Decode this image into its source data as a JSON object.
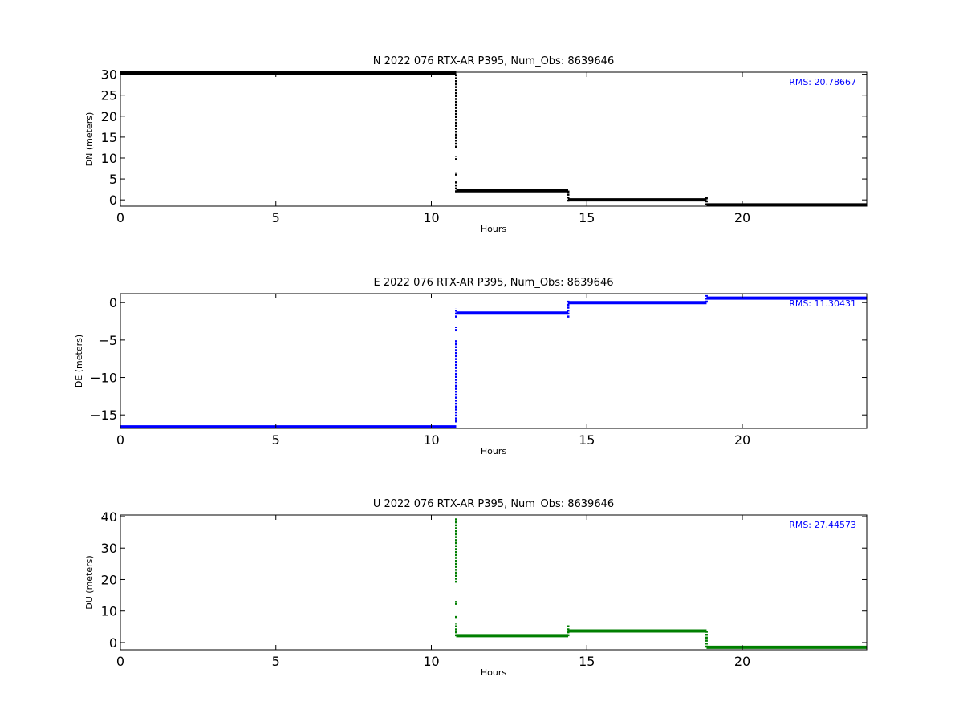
{
  "chart_data": [
    {
      "type": "scatter",
      "title": "N 2022 076 RTX-AR  P395, Num_Obs: 8639646",
      "xlabel": "Hours",
      "ylabel": "DN (meters)",
      "xlim": [
        0,
        24
      ],
      "ylim": [
        -1.5,
        30.5
      ],
      "xticks": [
        0,
        5,
        10,
        15,
        20
      ],
      "yticks": [
        0,
        5,
        10,
        15,
        20,
        25,
        30
      ],
      "grid": false,
      "color": "#000000",
      "annotation": "RMS: 20.78667",
      "annotation_color": "#0000ff",
      "segments": [
        {
          "x": [
            0,
            10.8
          ],
          "y": 30.3
        },
        {
          "x": [
            10.8,
            14.4
          ],
          "y": 2.2
        },
        {
          "x": [
            14.4,
            18.85
          ],
          "y": 0.0
        },
        {
          "x": [
            18.85,
            24
          ],
          "y": -1.2
        }
      ],
      "spikes": [
        {
          "x": 10.8,
          "y": [
            12.5,
            30.0
          ]
        },
        {
          "x": 10.8,
          "y": [
            9.5,
            10.3
          ]
        },
        {
          "x": 10.8,
          "y": [
            5.8,
            6.6
          ]
        },
        {
          "x": 10.8,
          "y": [
            1.8,
            4.5
          ]
        },
        {
          "x": 14.4,
          "y": [
            -0.4,
            2.4
          ]
        },
        {
          "x": 18.85,
          "y": [
            -1.3,
            0.6
          ]
        }
      ]
    },
    {
      "type": "scatter",
      "title": "E 2022 076 RTX-AR  P395, Num_Obs: 8639646",
      "xlabel": "Hours",
      "ylabel": "DE (meters)",
      "xlim": [
        0,
        24
      ],
      "ylim": [
        -16.8,
        1.2
      ],
      "xticks": [
        0,
        5,
        10,
        15,
        20
      ],
      "yticks": [
        -15,
        -10,
        -5,
        0
      ],
      "grid": false,
      "color": "#0000ff",
      "annotation": "RMS: 11.30431",
      "annotation_color": "#0000ff",
      "segments": [
        {
          "x": [
            0,
            10.8
          ],
          "y": -16.6
        },
        {
          "x": [
            10.8,
            14.4
          ],
          "y": -1.4
        },
        {
          "x": [
            14.4,
            18.85
          ],
          "y": 0.0
        },
        {
          "x": [
            18.85,
            24
          ],
          "y": 0.6
        }
      ],
      "spikes": [
        {
          "x": 10.8,
          "y": [
            -16.0,
            -5.0
          ]
        },
        {
          "x": 10.8,
          "y": [
            -3.8,
            -3.3
          ]
        },
        {
          "x": 10.8,
          "y": [
            -2.0,
            -0.8
          ]
        },
        {
          "x": 14.4,
          "y": [
            -2.0,
            0.3
          ]
        },
        {
          "x": 18.85,
          "y": [
            0.0,
            1.0
          ]
        }
      ]
    },
    {
      "type": "scatter",
      "title": "U 2022 076 RTX-AR  P395, Num_Obs: 8639646",
      "xlabel": "Hours",
      "ylabel": "DU (meters)",
      "xlim": [
        0,
        24
      ],
      "ylim": [
        -2.3,
        40.5
      ],
      "xticks": [
        0,
        5,
        10,
        15,
        20
      ],
      "yticks": [
        0,
        10,
        20,
        30,
        40
      ],
      "grid": false,
      "color": "#007f00",
      "annotation": "RMS: 27.44573",
      "annotation_color": "#0000ff",
      "segments": [
        {
          "x": [
            10.8,
            14.4
          ],
          "y": 2.2
        },
        {
          "x": [
            14.4,
            18.85
          ],
          "y": 3.7
        },
        {
          "x": [
            18.85,
            24
          ],
          "y": -1.5
        }
      ],
      "spikes": [
        {
          "x": 10.8,
          "y": [
            19.0,
            39.5
          ]
        },
        {
          "x": 10.8,
          "y": [
            12.0,
            13.2
          ]
        },
        {
          "x": 10.8,
          "y": [
            7.8,
            8.5
          ]
        },
        {
          "x": 10.8,
          "y": [
            2.0,
            6.0
          ]
        },
        {
          "x": 14.4,
          "y": [
            2.0,
            5.5
          ]
        },
        {
          "x": 18.85,
          "y": [
            -1.6,
            3.8
          ]
        }
      ]
    }
  ]
}
